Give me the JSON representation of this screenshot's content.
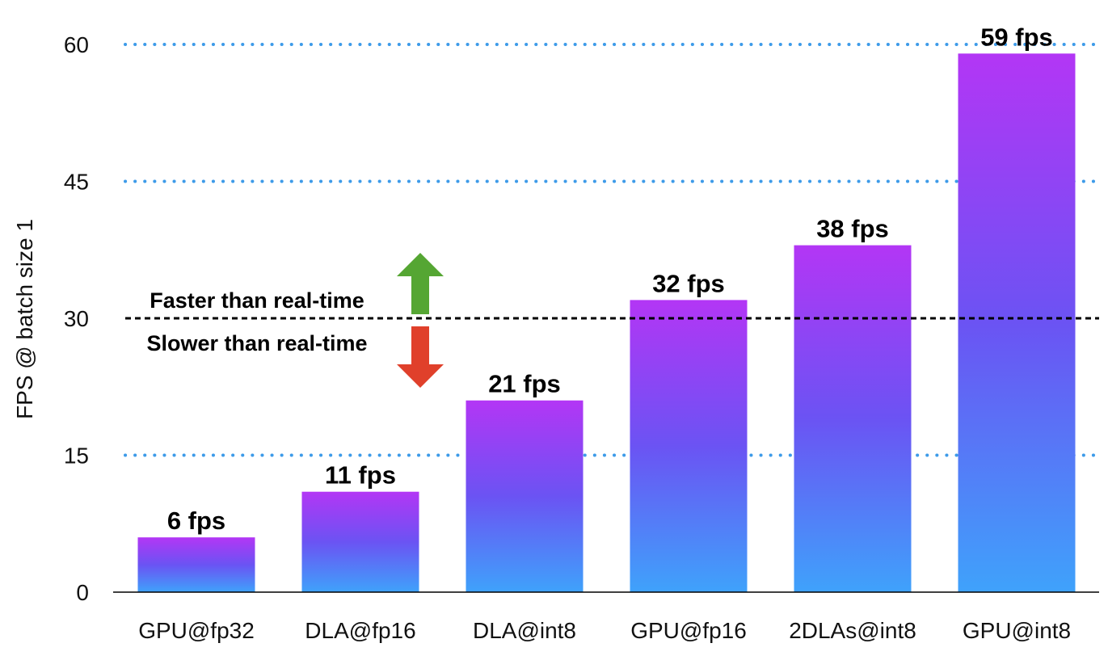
{
  "chart_data": {
    "type": "bar",
    "categories": [
      "GPU@fp32",
      "DLA@fp16",
      "DLA@int8",
      "GPU@fp16",
      "2DLAs@int8",
      "GPU@int8"
    ],
    "values": [
      6,
      11,
      21,
      32,
      38,
      59
    ],
    "data_labels": [
      "6 fps",
      "11 fps",
      "21 fps",
      "32 fps",
      "38 fps",
      "59 fps"
    ],
    "ylabel": "FPS @ batch size 1",
    "yticks": [
      "0",
      "15",
      "30",
      "45",
      "60"
    ],
    "ytick_values": [
      0,
      15,
      30,
      45,
      60
    ],
    "ylim": [
      0,
      60
    ],
    "grid": "dotted horizontal at 15, 45, 60",
    "reference_line": {
      "value": 30,
      "above_label": "Faster than real-time",
      "below_label": "Slower than real-time"
    },
    "colors": {
      "bar_top": "#b336f5",
      "bar_mid": "#6b53f3",
      "bar_bottom": "#3fa2fb",
      "grid": "#3d9be9",
      "arrow_up": "#55a633",
      "arrow_down": "#e0402b"
    },
    "legend": "none"
  }
}
